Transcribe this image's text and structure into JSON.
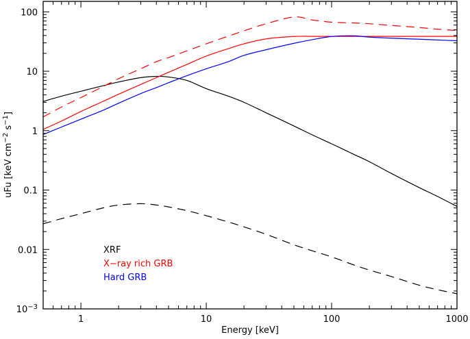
{
  "chart_data": {
    "type": "line",
    "title": "",
    "xlabel": "Energy [keV]",
    "ylabel": {
      "main": "uFu [keV cm",
      "exp1": "−2",
      "mid": " s",
      "exp2": "−1",
      "end": "]"
    },
    "xscale": "log",
    "yscale": "log",
    "xlim": [
      0.5,
      1000
    ],
    "ylim": [
      0.001,
      150
    ],
    "grid": false,
    "x_ticks": [
      {
        "value": 1,
        "label": "1"
      },
      {
        "value": 10,
        "label": "10"
      },
      {
        "value": 100,
        "label": "100"
      },
      {
        "value": 1000,
        "label": "1000"
      }
    ],
    "y_ticks": [
      {
        "value": 0.001,
        "label": "10",
        "sup": "−3"
      },
      {
        "value": 0.01,
        "label": "0.01"
      },
      {
        "value": 0.1,
        "label": "0.1"
      },
      {
        "value": 1,
        "label": "1"
      },
      {
        "value": 10,
        "label": "10"
      },
      {
        "value": 100,
        "label": "100"
      }
    ],
    "legend": {
      "placement": "lower-left",
      "entries": [
        {
          "label": "XRF",
          "color": "#000000"
        },
        {
          "label": "X−ray rich GRB",
          "color": "#ff0000"
        },
        {
          "label": "Hard GRB",
          "color": "#0000ff"
        }
      ]
    },
    "x": [
      0.5,
      0.7,
      1,
      1.5,
      2,
      3,
      4,
      5,
      7,
      10,
      15,
      20,
      30,
      50,
      70,
      100,
      150,
      200,
      300,
      500,
      700,
      1000
    ],
    "series": [
      {
        "name": "XRF",
        "color": "#000000",
        "dash": false,
        "values": [
          3.1,
          3.8,
          4.6,
          5.7,
          6.6,
          7.8,
          8.2,
          8.0,
          7.0,
          5.1,
          3.8,
          3.0,
          2.0,
          1.2,
          0.85,
          0.6,
          0.4,
          0.3,
          0.19,
          0.11,
          0.078,
          0.053
        ]
      },
      {
        "color": "#000000",
        "dash": true,
        "values": [
          0.027,
          0.033,
          0.04,
          0.05,
          0.056,
          0.059,
          0.056,
          0.052,
          0.045,
          0.037,
          0.029,
          0.024,
          0.018,
          0.012,
          0.0095,
          0.0075,
          0.0055,
          0.0045,
          0.0035,
          0.0025,
          0.0021,
          0.0018
        ]
      },
      {
        "name": "X−ray rich GRB",
        "color": "#ff0000",
        "dash": false,
        "values": [
          1.05,
          1.45,
          2.1,
          3.1,
          4.1,
          6.0,
          7.8,
          9.6,
          13,
          18,
          24,
          29,
          35,
          38.5,
          38.6,
          38.6,
          38.6,
          38.6,
          38.6,
          38.6,
          38.6,
          38.6
        ]
      },
      {
        "color": "#ff0000",
        "dash": true,
        "values": [
          1.7,
          2.5,
          3.6,
          5.5,
          7.5,
          11,
          14.5,
          17,
          22,
          29,
          39,
          48,
          63,
          82,
          73,
          67,
          65,
          63,
          59,
          54.4,
          51,
          48.5
        ]
      },
      {
        "name": "Hard GRB",
        "color": "#0000ff",
        "dash": false,
        "values": [
          0.86,
          1.15,
          1.56,
          2.2,
          2.9,
          4.2,
          5.3,
          6.4,
          8.4,
          11,
          14.5,
          18.5,
          23,
          29.5,
          34,
          38.5,
          39.5,
          37.5,
          36,
          34.6,
          33.6,
          32.6
        ]
      }
    ]
  }
}
